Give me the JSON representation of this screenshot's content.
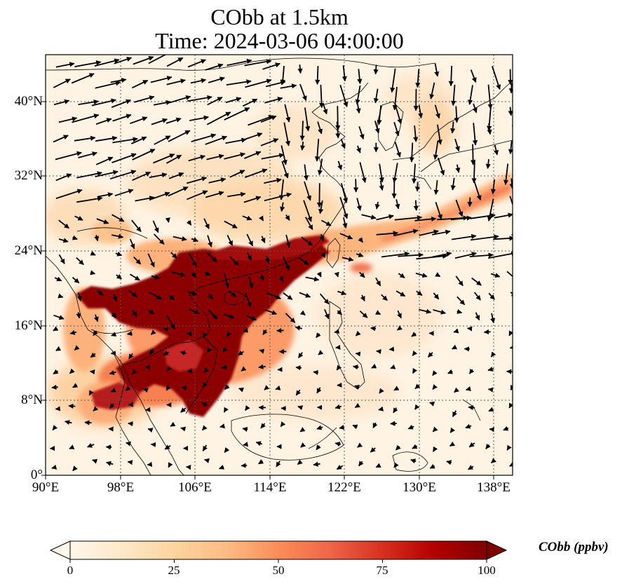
{
  "title": {
    "line1": "CObb at 1.5km",
    "line2": "Time: 2024-03-06 04:00:00"
  },
  "map": {
    "lon_range": [
      90,
      140
    ],
    "lat_range": [
      0,
      45
    ],
    "lon_ticks": [
      "90°E",
      "98°E",
      "106°E",
      "114°E",
      "122°E",
      "130°E",
      "138°E"
    ],
    "lat_ticks": [
      "0°",
      "8°N",
      "16°N",
      "24°N",
      "32°N",
      "40°N"
    ],
    "gridlines": "dotted",
    "wind_vectors": true,
    "high_concentration_region": "Indochina peninsula and southern China (approx. 6°N–24°N, 93°E–119°E)",
    "plume": "extends northeast from southern China over Taiwan to southern Japan"
  },
  "colorbar": {
    "label": "CObb (ppbv)",
    "ticks": [
      "0",
      "25",
      "50",
      "75",
      "100"
    ],
    "min": 0,
    "max": 100,
    "colormap": "OrRd",
    "extend": "both",
    "colors": [
      "#fff7ec",
      "#fee8c8",
      "#fdd49e",
      "#fdbb84",
      "#fc8d59",
      "#ef6548",
      "#d7301f",
      "#b30000",
      "#7f0000"
    ]
  }
}
